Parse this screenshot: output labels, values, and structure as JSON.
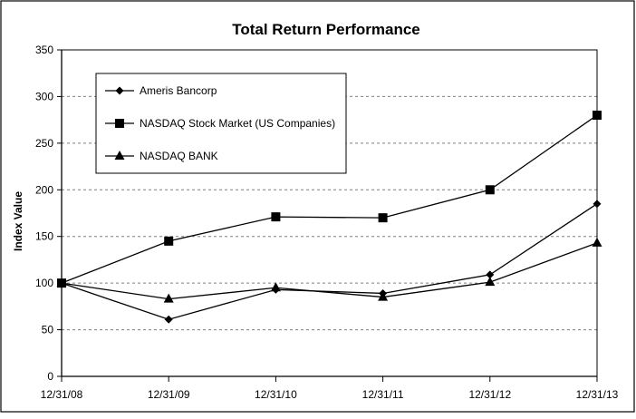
{
  "chart_data": {
    "type": "line",
    "title": "Total Return Performance",
    "xlabel": "",
    "ylabel": "Index Value",
    "categories": [
      "12/31/08",
      "12/31/09",
      "12/31/10",
      "12/31/11",
      "12/31/12",
      "12/31/13"
    ],
    "y_ticks": [
      "0",
      "50",
      "100",
      "150",
      "200",
      "250",
      "300",
      "350"
    ],
    "ylim": [
      0,
      350
    ],
    "grid": "horizontal dashed",
    "legend_position": "top-left",
    "series": [
      {
        "name": "Ameris Bancorp",
        "marker": "diamond",
        "values": [
          100,
          61,
          93,
          89,
          109,
          185
        ]
      },
      {
        "name": "NASDAQ Stock Market (US Companies)",
        "marker": "square",
        "values": [
          100,
          145,
          171,
          170,
          200,
          280
        ]
      },
      {
        "name": "NASDAQ BANK",
        "marker": "triangle",
        "values": [
          100,
          83,
          95,
          85,
          101,
          143
        ]
      }
    ],
    "colors": {
      "line": "#000000",
      "grid": "#7f7f7f",
      "border": "#000000"
    }
  }
}
